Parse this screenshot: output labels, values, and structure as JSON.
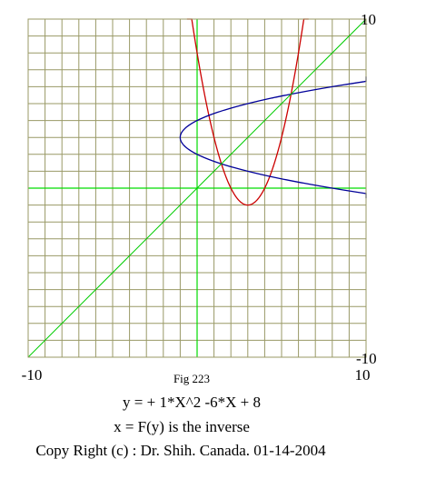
{
  "chart_data": {
    "type": "line",
    "xlim": [
      -10,
      10
    ],
    "ylim": [
      -10,
      10
    ],
    "grid": true,
    "grid_step": 1,
    "tick_labels": {
      "x_min": "-10",
      "x_max": "10",
      "y_min": "-10",
      "y_max": "10"
    },
    "figure_label": "Fig 223",
    "caption": {
      "equation": "y =  + 1*X^2 -6*X + 8",
      "inverse": "x = F(y) is the inverse",
      "copyright": "Copy Right (c) : Dr. Shih. Canada. 01-14-2004"
    },
    "series": [
      {
        "type": "function",
        "expr": "y = x^2 - 6x + 8",
        "coeffs": [
          1,
          -6,
          8
        ],
        "color": "#cc0000"
      },
      {
        "type": "inverse",
        "expr": "x = y^2 - 6y + 8",
        "coeffs": [
          1,
          -6,
          8
        ],
        "color": "#000099"
      },
      {
        "type": "reference",
        "expr": "y = x",
        "color": "#00cc00"
      }
    ],
    "colors": {
      "grid": "#999966",
      "axes": "#00dd00",
      "background": "#ffffff"
    }
  }
}
